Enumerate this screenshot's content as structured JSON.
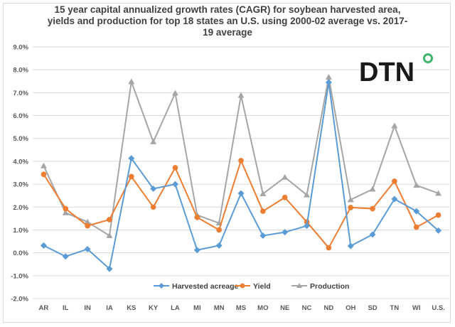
{
  "chart_data": {
    "type": "line",
    "title_lines": [
      "15 year capital annualized growth rates (CAGR) for soybean harvested area,",
      "yields and production for top 18 states an U.S. using 2000-02 average vs. 2017-",
      "19 average"
    ],
    "categories": [
      "AR",
      "IL",
      "IN",
      "IA",
      "KS",
      "KY",
      "LA",
      "MI",
      "MN",
      "MS",
      "MO",
      "NE",
      "NC",
      "ND",
      "OH",
      "SD",
      "TN",
      "WI",
      "U.S."
    ],
    "ylim": [
      -2.0,
      9.0
    ],
    "ytick_values": [
      -2,
      -1,
      0,
      1,
      2,
      3,
      4,
      5,
      6,
      7,
      8,
      9
    ],
    "ytick_labels": [
      "-2.0%",
      "-1.0%",
      "0.0%",
      "1.0%",
      "2.0%",
      "3.0%",
      "4.0%",
      "5.0%",
      "6.0%",
      "7.0%",
      "8.0%",
      "9.0%"
    ],
    "grid": true,
    "legend_position": "bottom",
    "series": [
      {
        "name": "Harvested acreage",
        "color": "#5b9bd5",
        "marker": "diamond",
        "values": [
          0.32,
          -0.16,
          0.16,
          -0.7,
          4.13,
          2.8,
          3.0,
          0.12,
          0.32,
          2.6,
          0.75,
          0.9,
          1.18,
          7.45,
          0.3,
          0.8,
          2.35,
          1.82,
          0.97
        ]
      },
      {
        "name": "Yield",
        "color": "#ed7d31",
        "marker": "circle",
        "values": [
          3.43,
          1.93,
          1.18,
          1.45,
          3.33,
          2.0,
          3.72,
          1.55,
          1.0,
          4.03,
          1.82,
          2.42,
          1.35,
          0.22,
          1.98,
          1.93,
          3.13,
          1.12,
          1.65
        ]
      },
      {
        "name": "Production",
        "color": "#a5a5a5",
        "marker": "triangle",
        "values": [
          3.8,
          1.75,
          1.35,
          0.75,
          7.48,
          4.85,
          6.98,
          1.65,
          1.3,
          6.88,
          2.58,
          3.3,
          2.53,
          7.68,
          2.32,
          2.78,
          5.55,
          2.95,
          2.6
        ]
      }
    ]
  },
  "logo": {
    "text": "DTN",
    "ring_color": "#3fb36b",
    "ring_color_2": "#2e86c1"
  }
}
